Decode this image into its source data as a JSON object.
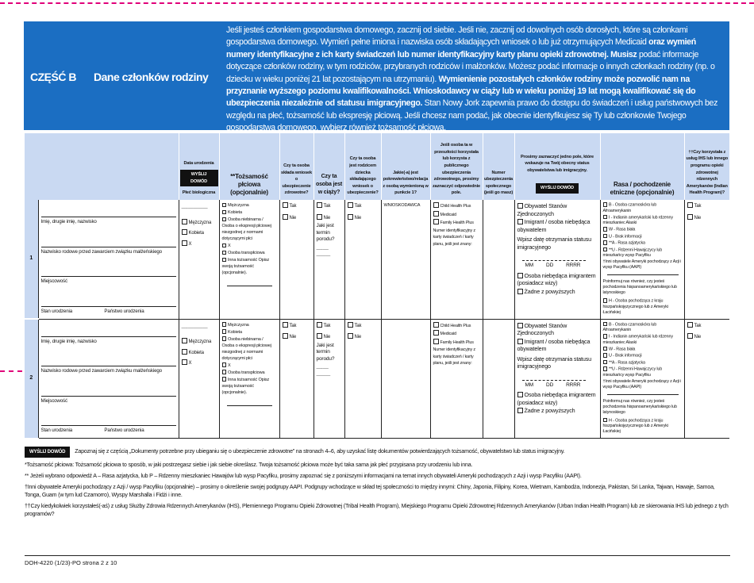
{
  "banner": {
    "part": "CZĘŚĆ B",
    "title": "Dane członków rodziny",
    "text_1": "Jeśli jesteś członkiem gospodarstwa domowego, zacznij od siebie. Jeśli nie, zacznij od dowolnych osób dorosłych, które są członkami gospodarstwa domowego. Wymień pełne imiona i nazwiska osób składających wniosek o lub już otrzymujących Medicaid ",
    "bold_1": "oraz wymień numery identyfikacyjne z ich karty świadczeń lub numer identyfikacyjny karty planu opieki zdrowotnej. Musisz",
    "text_2": " podać informacje dotyczące członków rodziny, w tym rodziców, przybranych rodziców i małżonków. Możesz podać informacje o innych członkach rodziny (np. o dziecku w wieku poniżej 21 lat pozostającym na utrzymaniu). ",
    "bold_2": "Wymienienie pozostałych członków rodziny może pozwolić nam na przyznanie wyższego poziomu kwalifikowalności. Wnioskodawcy w ciąży lub w wieku poniżej 19 lat mogą kwalifikować się do ubezpieczenia niezależnie od statusu imigracyjnego.",
    "text_3": " Stan Nowy Jork zapewnia prawo do dostępu do świadczeń i usług państwowych bez względu na płeć, tożsamość lub ekspresję płciową. Jeśli chcesz nam podać, jak obecnie identyfikujesz się Ty lub członkowie Twojego gospodarstwa domowego, wybierz również tożsamość płciową."
  },
  "headers": {
    "dob": "Data urodzenia",
    "send_proof": "WYŚLIJ DOWÓD",
    "sex": "Płeć biologiczna",
    "gender_identity": "**Tożsamość płciowa (opcjonalnie)",
    "applying": "Czy ta osoba składa wniosek o ubezpieczenie zdrowotne?",
    "pregnant": "Czy ta osoba jest w ciąży?",
    "parent": "Czy ta osoba jest rodzicem dziecka składającego wniosek o ubezpieczenie?",
    "relation": "Jakie(-a) jest pokrewieństwo/relacja z osobą wymienioną w punkcie 1?",
    "past_insurance": "Jeśli osoba ta w przeszłości korzystała lub korzysta z publicznego ubezpieczenia zdrowotnego, prosimy zaznaczyć odpowiednie pole.",
    "ssn": "Numer ubezpieczenia społecznego (jeśli go masz)",
    "citizenship": "Prosimy zaznaczyć jedno pole, które wskazuje na Twój obecny status obywatelstwa lub imigracyjny.",
    "race": "Rasa / pochodzenie etniczne (opcjonalnie)",
    "ihs": "††Czy korzystała z usług IHS lub innego programu opieki zdrowotnej rdzennych Amerykanów (Indian Health Program)?"
  },
  "row_labels": {
    "full_name": "Imię, drugie imię, nazwisko",
    "maiden_name": "Nazwisko rodowe przed zawarciem związku małżeńskiego",
    "city": "Miejscowość",
    "state": "Stan urodzenia",
    "country": "Państwo urodzenia",
    "date_placeholder": "—-—-———",
    "sex_options": [
      "Mężczyzna",
      "Kobieta",
      "X"
    ],
    "gender_options": [
      "Mężczyzna",
      "Kobieta",
      "Osoba niebinarna / Osoba o ekspresji płciowej niezgodnej z normami dotyczącymi płci",
      "X",
      "Osoba transpłciowa",
      "Inna tożsamość Opisz swoją tożsamość (opcjonalnie)."
    ],
    "yes": "Tak",
    "no": "Nie",
    "due_date": "Jaki jest termin porodu?",
    "insurance_options": [
      "Child Health Plus",
      "Medicaid",
      "Family Health Plus"
    ],
    "insurance_id": "Numer identyfikacyjny z karty świadczeń / karty planu, jeśli jest znany:",
    "citizenship_options": [
      "Obywatel Stanów Zjednoczonych",
      "Imigrant / osoba niebędąca obywatelem"
    ],
    "immigration_date": "Wpisz datę otrzymania statusu imigracyjnego",
    "mm": "MM",
    "dd": "DD",
    "yyyy": "RRRR",
    "citizenship_options_2": [
      "Osoba niebędąca imigrantem (posiadacz wizy)",
      "Żadne z powyższych"
    ],
    "race_options": [
      "B - Osoba czarnoskóra lub Afroamerykanin",
      "I - Indianin amerykański lub rdzenny mieszkaniec Alaski",
      "W - Rasa biała",
      "U - Brak informacji",
      "**A - Rasa azjatycka",
      "**U - Rdzenni Hawajczycy lub mieszkańcy wysp Pacyfiku"
    ],
    "aapi_note": "†Inni obywatele Ameryki pochodzący z Azji i wysp Pacyfiku (AAPI)",
    "hispanic_q": "Poinformuj nas również, czy jesteś pochodzenia hispanoamerykańskiego lub latynoskiego",
    "hispanic_option": "H - Osoba pochodząca z kraju hiszpańskojęzycznego lub z Ameryki Łacińskiej"
  },
  "rows": [
    {
      "number": "1",
      "relation": "WNIOSKODAWCA"
    },
    {
      "number": "2",
      "relation": ""
    }
  ],
  "footer": {
    "send_proof": "WYŚLIJ DOWÓD",
    "note_docs": "Zapoznaj się z częścią „Dokumenty potrzebne przy ubieganiu się o ubezpieczenie zdrowotne” na stronach 4–6, aby uzyskać listę dokumentów potwierdzających tożsamość, obywatelstwo lub status imigracyjny.",
    "note_gender": "*Tożsamość płciowa: Tożsamość płciowa to sposób, w jaki postrzegasz siebie i jak siebie określasz. Twoja tożsamość płciowa może być taka sama jak płeć przypisana przy urodzeniu lub inna.",
    "note_asian": "** Jeżeli wybrano odpowiedź A – Rasa azjatycka, lub P – Rdzenny mieszkaniec Hawajów lub wysp Pacyfiku, prosimy zapoznać się z poniższymi informacjami na temat innych obywateli Ameryki pochodzących z Azji i wysp Pacyfiku (AAPI).",
    "note_aapi": "†Inni obywatele Ameryki pochodzący z Azji / wysp Pacyfiku (opcjonalnie) – prosimy o określenie swojej podgrupy AAPI. Podgrupy wchodzące w skład tej społeczności to między innymi: Chiny, Japonia, Filipiny, Korea, Wietnam, Kambodża, Indonezja, Pakistan, Sri Lanka, Tajwan, Hawaje, Samoa, Tonga, Guam (w tym lud Czamorro), Wyspy Marshalla i Fidżi i inne.",
    "note_ihs": "††Czy kiedykolwiek korzystałeś(-aś) z usług Służby Zdrowia Rdzennych Amerykanów (IHS), Plemiennego Programu Opieki Zdrowotnej (Tribal Health Program), Miejskiego Programu Opieki Zdrowotnej Rdzennych Amerykanów (Urban Indian Health Program) lub ze skierowania IHS lub jednego z tych programów?",
    "doc_id": "DOH-4220 (1/23)-PO strona 2 z 10"
  },
  "colors": {
    "banner": "#1b6ec2",
    "header_bg": "#c9d9f2",
    "cut_line": "#e0007a"
  }
}
